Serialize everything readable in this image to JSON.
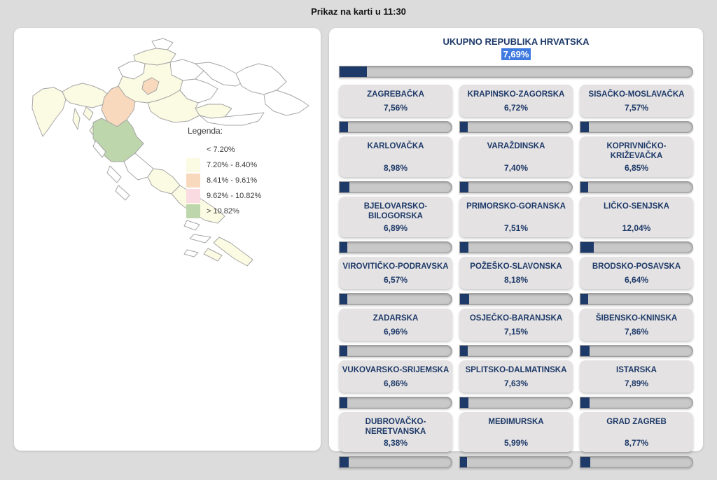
{
  "header": {
    "title": "Prikaz na karti u 11:30"
  },
  "theme": {
    "page_bg": "#dcdcdc",
    "panel_bg": "#ffffff",
    "card_bg": "#e4e2e2",
    "navy": "#1e3a69",
    "selection_blue": "#3e7adf",
    "track_bg": "#c9c9c9",
    "track_border": "#9d9d9d",
    "map_stroke": "#a6a6a6"
  },
  "map": {
    "legend_title": "Legenda:",
    "legend": [
      {
        "label": "< 7.20%",
        "color": "#ffffff",
        "max": 7.2
      },
      {
        "label": "7.20% - 8.40%",
        "color": "#fbfae3",
        "max": 8.405
      },
      {
        "label": "8.41% - 9.61%",
        "color": "#f8d9bd",
        "max": 9.615
      },
      {
        "label": "9.62% - 10.82%",
        "color": "#fbdbe2",
        "max": 10.825
      },
      {
        "label": "> 10.82%",
        "color": "#bed6ac",
        "max": 1000
      }
    ]
  },
  "total": {
    "name": "UKUPNO REPUBLIKA HRVATSKA",
    "value_label": "7,69%",
    "value": 7.69
  },
  "counties": [
    {
      "name": "ZAGREBAČKA",
      "value_label": "7,56%",
      "value": 7.56
    },
    {
      "name": "KRAPINSKO-ZAGORSKA",
      "value_label": "6,72%",
      "value": 6.72
    },
    {
      "name": "SISAČKO-MOSLAVAČKA",
      "value_label": "7,57%",
      "value": 7.57
    },
    {
      "name": "KARLOVAČKA",
      "value_label": "8,98%",
      "value": 8.98
    },
    {
      "name": "VARAŽDINSKA",
      "value_label": "7,40%",
      "value": 7.4
    },
    {
      "name": "KOPRIVNIČKO-KRIŽEVAČKA",
      "value_label": "6,85%",
      "value": 6.85
    },
    {
      "name": "BJELOVARSKO-BILOGORSKA",
      "value_label": "6,89%",
      "value": 6.89
    },
    {
      "name": "PRIMORSKO-GORANSKA",
      "value_label": "7,51%",
      "value": 7.51
    },
    {
      "name": "LIČKO-SENJSKA",
      "value_label": "12,04%",
      "value": 12.04
    },
    {
      "name": "VIROVITIČKO-PODRAVSKA",
      "value_label": "6,57%",
      "value": 6.57
    },
    {
      "name": "POŽEŠKO-SLAVONSKA",
      "value_label": "8,18%",
      "value": 8.18
    },
    {
      "name": "BRODSKO-POSAVSKA",
      "value_label": "6,64%",
      "value": 6.64
    },
    {
      "name": "ZADARSKA",
      "value_label": "6,96%",
      "value": 6.96
    },
    {
      "name": "OSJEČKO-BARANJSKA",
      "value_label": "7,15%",
      "value": 7.15
    },
    {
      "name": "ŠIBENSKO-KNINSKA",
      "value_label": "7,86%",
      "value": 7.86
    },
    {
      "name": "VUKOVARSKO-SRIJEMSKA",
      "value_label": "6,86%",
      "value": 6.86
    },
    {
      "name": "SPLITSKO-DALMATINSKA",
      "value_label": "7,63%",
      "value": 7.63
    },
    {
      "name": "ISTARSKA",
      "value_label": "7,89%",
      "value": 7.89
    },
    {
      "name": "DUBROVAČKO-NERETVANSKA",
      "value_label": "8,38%",
      "value": 8.38
    },
    {
      "name": "MEĐIMURSKA",
      "value_label": "5,99%",
      "value": 5.99
    },
    {
      "name": "GRAD ZAGREB",
      "value_label": "8,77%",
      "value": 8.77
    }
  ]
}
